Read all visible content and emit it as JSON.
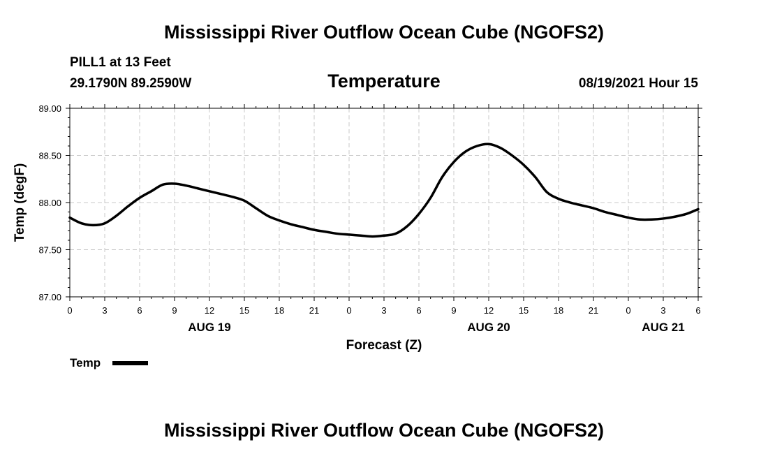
{
  "header": {
    "title": "Mississippi River Outflow Ocean Cube (NGOFS2)",
    "station": "PILL1 at 13 Feet",
    "coords": "29.1790N  89.2590W",
    "variable": "Temperature",
    "datetime": "08/19/2021 Hour 15"
  },
  "footer": {
    "title": "Mississippi River Outflow Ocean Cube (NGOFS2)"
  },
  "chart_data": {
    "type": "line",
    "title": "Temperature",
    "xlabel": "Forecast (Z)",
    "ylabel": "Temp (degF)",
    "xlim": [
      0,
      54
    ],
    "ylim": [
      87.0,
      89.0
    ],
    "grid": true,
    "legend_position": "bottom-left",
    "x_ticks": [
      0,
      3,
      6,
      9,
      12,
      15,
      18,
      21,
      24,
      27,
      30,
      33,
      36,
      39,
      42,
      45,
      48,
      51,
      54
    ],
    "x_tick_labels": [
      "0",
      "3",
      "6",
      "9",
      "12",
      "15",
      "18",
      "21",
      "0",
      "3",
      "6",
      "9",
      "12",
      "15",
      "18",
      "21",
      "0",
      "3",
      "6"
    ],
    "y_ticks": [
      87.0,
      87.5,
      88.0,
      88.5,
      89.0
    ],
    "y_tick_labels": [
      "87.00",
      "87.50",
      "88.00",
      "88.50",
      "89.00"
    ],
    "day_labels": [
      {
        "label": "AUG 19",
        "x": 12
      },
      {
        "label": "AUG 20",
        "x": 36
      },
      {
        "label": "AUG 21",
        "x": 51
      }
    ],
    "series": [
      {
        "name": "Temp",
        "color": "#000000",
        "x": [
          0,
          1,
          2,
          3,
          4,
          5,
          6,
          7,
          8,
          9,
          10,
          11,
          12,
          13,
          14,
          15,
          16,
          17,
          18,
          19,
          20,
          21,
          22,
          23,
          24,
          25,
          26,
          27,
          28,
          29,
          30,
          31,
          32,
          33,
          34,
          35,
          36,
          37,
          38,
          39,
          40,
          41,
          42,
          43,
          44,
          45,
          46,
          47,
          48,
          49,
          50,
          51,
          52,
          53,
          54
        ],
        "values": [
          87.84,
          87.78,
          87.76,
          87.78,
          87.86,
          87.96,
          88.05,
          88.12,
          88.19,
          88.2,
          88.18,
          88.15,
          88.12,
          88.09,
          88.06,
          88.02,
          87.94,
          87.86,
          87.81,
          87.77,
          87.74,
          87.71,
          87.69,
          87.67,
          87.66,
          87.65,
          87.64,
          87.65,
          87.67,
          87.75,
          87.88,
          88.05,
          88.27,
          88.43,
          88.54,
          88.6,
          88.62,
          88.58,
          88.5,
          88.4,
          88.27,
          88.11,
          88.04,
          88.0,
          87.97,
          87.94,
          87.9,
          87.87,
          87.84,
          87.82,
          87.82,
          87.83,
          87.85,
          87.88,
          87.93
        ]
      }
    ]
  }
}
